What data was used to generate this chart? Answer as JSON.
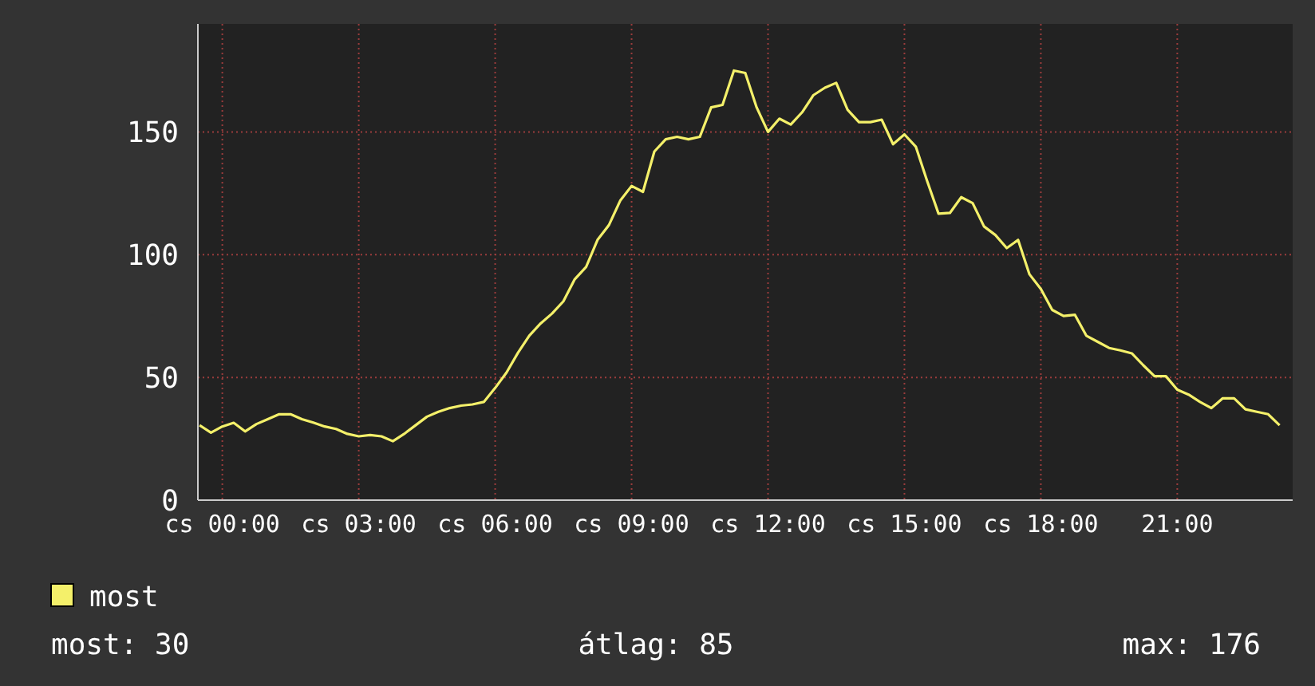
{
  "chart_data": {
    "type": "line",
    "ylim": [
      0,
      194
    ],
    "categories": [
      null,
      null,
      "cs 00:00",
      null,
      null,
      null,
      null,
      null,
      null,
      null,
      null,
      null,
      null,
      null,
      "cs 03:00",
      null,
      null,
      null,
      null,
      null,
      null,
      null,
      null,
      null,
      null,
      null,
      "cs 06:00",
      null,
      null,
      null,
      null,
      null,
      null,
      null,
      null,
      null,
      null,
      null,
      "cs 09:00",
      null,
      null,
      null,
      null,
      null,
      null,
      null,
      null,
      null,
      null,
      null,
      "cs 12:00",
      null,
      null,
      null,
      null,
      null,
      null,
      null,
      null,
      null,
      null,
      null,
      "cs 15:00",
      null,
      null,
      null,
      null,
      null,
      null,
      null,
      null,
      null,
      null,
      null,
      "cs 18:00",
      null,
      null,
      null,
      null,
      null,
      null,
      null,
      null,
      null,
      null,
      null,
      "21:00",
      null,
      null,
      null,
      null,
      null,
      null,
      null,
      null,
      null
    ],
    "yticks": [
      0,
      50,
      100,
      150
    ],
    "grid": true,
    "legend": "bottom left",
    "marker": "none",
    "line_style": "solid",
    "annotations": [
      "most: 30",
      "átlag: 85",
      "max: 176"
    ],
    "series": [
      {
        "name": "most",
        "color": "#f4f06a",
        "values": [
          30.5,
          27.5,
          30,
          31.5,
          28,
          31,
          33,
          35,
          35,
          33,
          31.6,
          30,
          29,
          27,
          26,
          26.5,
          26,
          24,
          27,
          30.5,
          34,
          36,
          37.5,
          38.5,
          39,
          40,
          45.7,
          52,
          60,
          67,
          72,
          76,
          81,
          90,
          95,
          106,
          112,
          122,
          128,
          125.6,
          142,
          147,
          148,
          147,
          148,
          160,
          161,
          175,
          174,
          160,
          150,
          155.4,
          153,
          158,
          165,
          168,
          170,
          159,
          154,
          154,
          155,
          145,
          149,
          144,
          130,
          116.7,
          117,
          123.4,
          121,
          111.5,
          108,
          102.7,
          106,
          92,
          86,
          77.5,
          75,
          75.5,
          67,
          64.5,
          62,
          61,
          59.8,
          55,
          50.5,
          50.5,
          45,
          43,
          40,
          37.5,
          41.5,
          41.5,
          37,
          36,
          35,
          30.5
        ]
      }
    ]
  }
}
